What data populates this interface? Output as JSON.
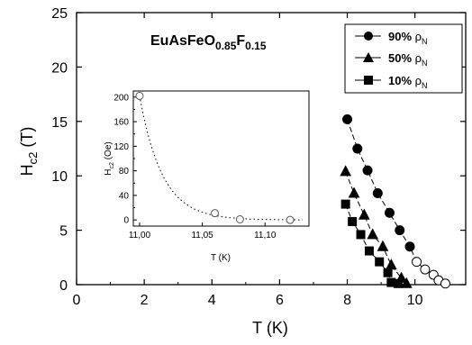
{
  "chart_data": [
    {
      "type": "scatter",
      "title_parts": [
        "EuAsFeO",
        "0.85",
        "F",
        "0.15"
      ],
      "xlabel": "T (K)",
      "ylabel_parts": [
        "H",
        "c2",
        " (T)"
      ],
      "xlim": [
        0,
        11.5
      ],
      "ylim": [
        0,
        25
      ],
      "xticks": [
        0,
        2,
        4,
        6,
        8,
        10
      ],
      "yticks": [
        0,
        5,
        10,
        15,
        20,
        25
      ],
      "legend_position": "top-right",
      "series": [
        {
          "name_parts": [
            "90% ",
            "ρ",
            "N"
          ],
          "marker": "circle",
          "filled": [
            [
              8.0,
              15.2
            ],
            [
              8.3,
              12.5
            ],
            [
              8.6,
              10.5
            ],
            [
              8.9,
              8.4
            ],
            [
              9.25,
              6.6
            ],
            [
              9.55,
              5.0
            ],
            [
              9.85,
              3.5
            ]
          ],
          "open": [
            [
              10.05,
              2.1
            ],
            [
              10.3,
              1.4
            ],
            [
              10.55,
              0.9
            ],
            [
              10.7,
              0.4
            ],
            [
              10.9,
              0.1
            ]
          ]
        },
        {
          "name_parts": [
            "50% ",
            "ρ",
            "N"
          ],
          "marker": "triangle",
          "filled": [
            [
              7.95,
              10.4
            ],
            [
              8.2,
              8.4
            ],
            [
              8.5,
              6.4
            ],
            [
              8.75,
              4.6
            ],
            [
              9.05,
              3.5
            ],
            [
              9.3,
              1.8
            ],
            [
              9.6,
              0.6
            ],
            [
              9.75,
              0.1
            ]
          ],
          "open": []
        },
        {
          "name_parts": [
            "10% ",
            "ρ",
            "N"
          ],
          "marker": "square",
          "filled": [
            [
              7.95,
              7.4
            ],
            [
              8.15,
              5.8
            ],
            [
              8.4,
              4.6
            ],
            [
              8.65,
              3.1
            ],
            [
              8.95,
              2.1
            ],
            [
              9.2,
              1.1
            ],
            [
              9.3,
              0.2
            ],
            [
              9.5,
              0.1
            ]
          ],
          "open": []
        }
      ]
    },
    {
      "type": "scatter",
      "role": "inset",
      "xlabel": "T (K)",
      "ylabel_parts": [
        "H",
        "c2",
        " (Oe)"
      ],
      "xlim": [
        10.995,
        11.135
      ],
      "ylim": [
        -10,
        210
      ],
      "xticks": [
        11.0,
        11.05,
        11.1
      ],
      "xtick_labels": [
        "11,00",
        "11,05",
        "11,10"
      ],
      "yticks": [
        0,
        20,
        40,
        60,
        80,
        100,
        120,
        140,
        160,
        180,
        200
      ],
      "points": [
        [
          11.0,
          202
        ],
        [
          11.06,
          11
        ],
        [
          11.08,
          1
        ],
        [
          11.12,
          0
        ]
      ],
      "fit_line": "dotted"
    }
  ]
}
